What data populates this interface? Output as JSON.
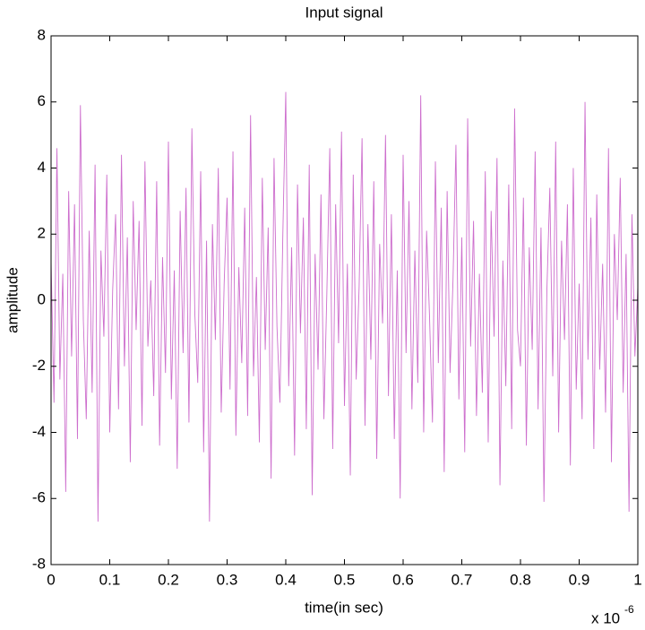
{
  "chart_data": {
    "type": "line",
    "title": "Input  signal",
    "x_label": "time(in sec)",
    "y_label": "amplitude",
    "x_exponent_base": "x 10",
    "x_exponent": "-6",
    "xlim": [
      0,
      1
    ],
    "xticks": [
      0,
      0.1,
      0.2,
      0.3,
      0.4,
      0.5,
      0.6,
      0.7,
      0.8,
      0.9,
      1
    ],
    "ylim": [
      -8,
      8
    ],
    "yticks": [
      -8,
      -6,
      -4,
      -2,
      0,
      2,
      4,
      6,
      8
    ],
    "series": [
      {
        "color": "#c455c4",
        "x": [
          0,
          0.005,
          0.01,
          0.015,
          0.02,
          0.025,
          0.03,
          0.035,
          0.04,
          0.045,
          0.05,
          0.055,
          0.06,
          0.065,
          0.07,
          0.075,
          0.08,
          0.085,
          0.09,
          0.095,
          0.1,
          0.105,
          0.11,
          0.115,
          0.12,
          0.125,
          0.13,
          0.135,
          0.14,
          0.145,
          0.15,
          0.155,
          0.16,
          0.165,
          0.17,
          0.175,
          0.18,
          0.185,
          0.19,
          0.195,
          0.2,
          0.205,
          0.21,
          0.215,
          0.22,
          0.225,
          0.23,
          0.235,
          0.24,
          0.245,
          0.25,
          0.255,
          0.26,
          0.265,
          0.27,
          0.275,
          0.28,
          0.285,
          0.29,
          0.295,
          0.3,
          0.305,
          0.31,
          0.315,
          0.32,
          0.325,
          0.33,
          0.335,
          0.34,
          0.345,
          0.35,
          0.355,
          0.36,
          0.365,
          0.37,
          0.375,
          0.38,
          0.385,
          0.39,
          0.395,
          0.4,
          0.405,
          0.41,
          0.415,
          0.42,
          0.425,
          0.43,
          0.435,
          0.44,
          0.445,
          0.45,
          0.455,
          0.46,
          0.465,
          0.47,
          0.475,
          0.48,
          0.485,
          0.49,
          0.495,
          0.5,
          0.505,
          0.51,
          0.515,
          0.52,
          0.525,
          0.53,
          0.535,
          0.54,
          0.545,
          0.55,
          0.555,
          0.56,
          0.565,
          0.57,
          0.575,
          0.58,
          0.585,
          0.59,
          0.595,
          0.6,
          0.605,
          0.61,
          0.615,
          0.62,
          0.625,
          0.63,
          0.635,
          0.64,
          0.645,
          0.65,
          0.655,
          0.66,
          0.665,
          0.67,
          0.675,
          0.68,
          0.685,
          0.69,
          0.695,
          0.7,
          0.705,
          0.71,
          0.715,
          0.72,
          0.725,
          0.73,
          0.735,
          0.74,
          0.745,
          0.75,
          0.755,
          0.76,
          0.765,
          0.77,
          0.775,
          0.78,
          0.785,
          0.79,
          0.795,
          0.8,
          0.805,
          0.81,
          0.815,
          0.82,
          0.825,
          0.83,
          0.835,
          0.84,
          0.845,
          0.85,
          0.855,
          0.86,
          0.865,
          0.87,
          0.875,
          0.88,
          0.885,
          0.89,
          0.895,
          0.9,
          0.905,
          0.91,
          0.915,
          0.92,
          0.925,
          0.93,
          0.935,
          0.94,
          0.945,
          0.95,
          0.955,
          0.96,
          0.965,
          0.97,
          0.975,
          0.98,
          0.985,
          0.99,
          0.995,
          1
        ],
        "values": [
          1.2,
          -3.1,
          4.6,
          -2.4,
          0.8,
          -5.8,
          3.3,
          -1.7,
          2.9,
          -4.2,
          5.9,
          -0.6,
          -3.6,
          2.1,
          -2.8,
          4.1,
          -6.7,
          1.5,
          -1.1,
          3.8,
          -4.0,
          0.3,
          2.6,
          -3.3,
          4.4,
          -2.0,
          1.9,
          -4.9,
          3.0,
          -0.9,
          2.4,
          -3.8,
          4.2,
          -1.4,
          0.6,
          -2.9,
          3.6,
          -4.4,
          1.3,
          -2.2,
          4.8,
          -3.0,
          0.9,
          -5.1,
          2.7,
          -1.6,
          3.4,
          -3.7,
          5.2,
          -0.4,
          -2.5,
          3.9,
          -4.6,
          1.8,
          -6.7,
          2.3,
          -1.2,
          4.0,
          -3.4,
          0.5,
          3.1,
          -2.7,
          4.5,
          -4.1,
          1.0,
          -1.9,
          2.8,
          -3.5,
          5.6,
          -2.3,
          0.7,
          -4.3,
          3.7,
          -1.5,
          2.2,
          -5.4,
          4.3,
          -0.8,
          -3.1,
          2.0,
          6.3,
          -2.6,
          1.6,
          -4.7,
          3.5,
          -1.0,
          2.5,
          -3.9,
          4.1,
          -5.9,
          1.4,
          -2.1,
          3.2,
          -3.6,
          0.2,
          4.6,
          -4.5,
          2.9,
          -1.3,
          5.1,
          -3.2,
          1.1,
          -5.3,
          3.8,
          -2.4,
          0.4,
          4.9,
          -3.8,
          2.3,
          -1.8,
          3.6,
          -4.8,
          1.7,
          -0.7,
          5.0,
          -2.9,
          2.6,
          -4.2,
          0.9,
          -6.0,
          4.4,
          -1.6,
          3.0,
          -3.3,
          1.5,
          -2.5,
          6.2,
          -4.0,
          2.1,
          -0.5,
          -3.7,
          4.2,
          -1.9,
          2.8,
          -5.2,
          3.3,
          -2.2,
          0.6,
          4.7,
          -3.0,
          1.9,
          -4.6,
          5.5,
          -1.4,
          2.4,
          -3.5,
          0.8,
          -2.8,
          3.9,
          -4.3,
          2.7,
          -1.1,
          4.3,
          -5.6,
          1.2,
          -2.6,
          3.5,
          -3.9,
          5.8,
          -0.9,
          -2.0,
          3.1,
          -4.4,
          1.6,
          -1.5,
          4.5,
          -3.3,
          2.2,
          -6.1,
          0.3,
          3.4,
          -2.3,
          4.8,
          -4.0,
          1.8,
          -1.2,
          2.9,
          -5.0,
          4.0,
          -2.7,
          0.5,
          -3.6,
          6.0,
          -1.8,
          2.5,
          -4.5,
          3.2,
          -2.1,
          1.1,
          -3.4,
          4.6,
          -4.9,
          2.0,
          -0.6,
          3.7,
          -2.8,
          1.4,
          -6.4,
          2.6,
          -1.7,
          0.4
        ]
      }
    ]
  }
}
